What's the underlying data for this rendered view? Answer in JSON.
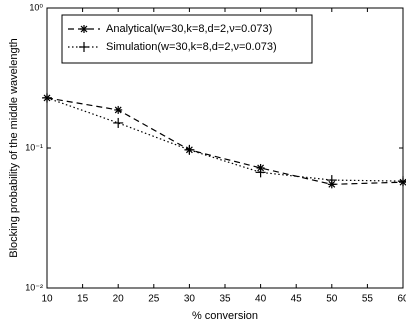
{
  "chart_data": {
    "type": "line",
    "x_label": "% conversion",
    "y_label": "Blocking probability of the middle wavelength",
    "x": [
      10,
      20,
      30,
      40,
      50,
      60
    ],
    "series": [
      {
        "name": "Analytical(w=30,k=8,d=2,ν=0.073)",
        "color": "#000000",
        "dash": "dashed",
        "marker": "asterisk",
        "values": [
          0.228,
          0.187,
          0.097,
          0.072,
          0.055,
          0.057
        ]
      },
      {
        "name": "Simulation(w=30,k=8,d=2,ν=0.073)",
        "color": "#000000",
        "dash": "dotted",
        "marker": "plus",
        "values": [
          0.228,
          0.151,
          0.097,
          0.067,
          0.059,
          0.058
        ]
      }
    ],
    "xlim": [
      10,
      60
    ],
    "xticks": [
      10,
      15,
      20,
      25,
      30,
      35,
      40,
      45,
      50,
      55,
      60
    ],
    "ylim": [
      0.01,
      1
    ],
    "y_scale": "log",
    "yticks": [
      {
        "value": 0.01,
        "label": "10⁻²"
      },
      {
        "value": 0.1,
        "label": "10⁻¹"
      },
      {
        "value": 1,
        "label": "10⁰"
      }
    ],
    "legend": "upper left"
  }
}
